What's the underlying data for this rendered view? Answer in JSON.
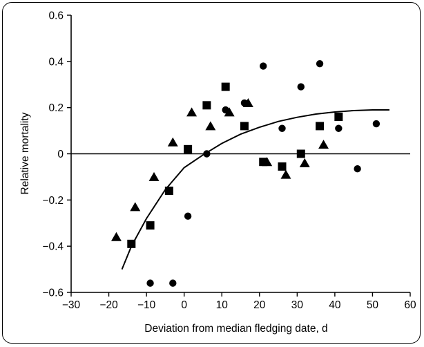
{
  "chart_data": {
    "type": "scatter",
    "xlabel": "Deviation from median fledging date, d",
    "ylabel": "Relative mortality",
    "xlim": [
      -30,
      60
    ],
    "ylim": [
      -0.6,
      0.6
    ],
    "x_ticks": [
      -30,
      -20,
      -10,
      0,
      10,
      20,
      30,
      40,
      50,
      60
    ],
    "x_tick_labels": [
      "−30",
      "−20",
      "−10",
      "0",
      "10",
      "20",
      "30",
      "40",
      "50",
      "60"
    ],
    "y_ticks": [
      -0.6,
      -0.4,
      -0.2,
      0,
      0.2,
      0.4,
      0.6
    ],
    "y_tick_labels": [
      "−0.6",
      "−0.4",
      "−0.2",
      "0",
      "0.2",
      "0.4",
      "0.6"
    ],
    "zero_line": true,
    "grid": false,
    "legend": "none",
    "series": [
      {
        "marker": "circle",
        "points": [
          [
            -9,
            -0.56
          ],
          [
            -3,
            -0.56
          ],
          [
            1,
            -0.27
          ],
          [
            6,
            0.0
          ],
          [
            11,
            0.19
          ],
          [
            16,
            0.22
          ],
          [
            21,
            0.38
          ],
          [
            26,
            0.11
          ],
          [
            31,
            0.29
          ],
          [
            36,
            0.39
          ],
          [
            41,
            0.11
          ],
          [
            46,
            -0.065
          ],
          [
            51,
            0.13
          ]
        ]
      },
      {
        "marker": "square",
        "points": [
          [
            -14,
            -0.39
          ],
          [
            -9,
            -0.31
          ],
          [
            -4,
            -0.16
          ],
          [
            1,
            0.02
          ],
          [
            6,
            0.21
          ],
          [
            11,
            0.29
          ],
          [
            16,
            0.12
          ],
          [
            21,
            -0.035
          ],
          [
            26,
            -0.055
          ],
          [
            31,
            0.0
          ],
          [
            36,
            0.12
          ],
          [
            41,
            0.16
          ]
        ]
      },
      {
        "marker": "triangle",
        "points": [
          [
            -18,
            -0.36
          ],
          [
            -13,
            -0.23
          ],
          [
            -8,
            -0.1
          ],
          [
            -3,
            0.05
          ],
          [
            2,
            0.18
          ],
          [
            7,
            0.12
          ],
          [
            12,
            0.18
          ],
          [
            17,
            0.22
          ],
          [
            22,
            -0.035
          ],
          [
            27,
            -0.09
          ],
          [
            32,
            -0.04
          ],
          [
            37,
            0.04
          ]
        ]
      }
    ],
    "fit_curve": {
      "points": [
        [
          -16.5,
          -0.5
        ],
        [
          -14,
          -0.4
        ],
        [
          -10,
          -0.28
        ],
        [
          -5,
          -0.155
        ],
        [
          0,
          -0.06
        ],
        [
          5,
          -0.005
        ],
        [
          10,
          0.045
        ],
        [
          15,
          0.085
        ],
        [
          20,
          0.115
        ],
        [
          25,
          0.14
        ],
        [
          30,
          0.158
        ],
        [
          35,
          0.172
        ],
        [
          40,
          0.181
        ],
        [
          45,
          0.187
        ],
        [
          50,
          0.19
        ],
        [
          54.5,
          0.19
        ]
      ]
    },
    "colors": {
      "ink": "#000000",
      "background": "#ffffff"
    }
  }
}
